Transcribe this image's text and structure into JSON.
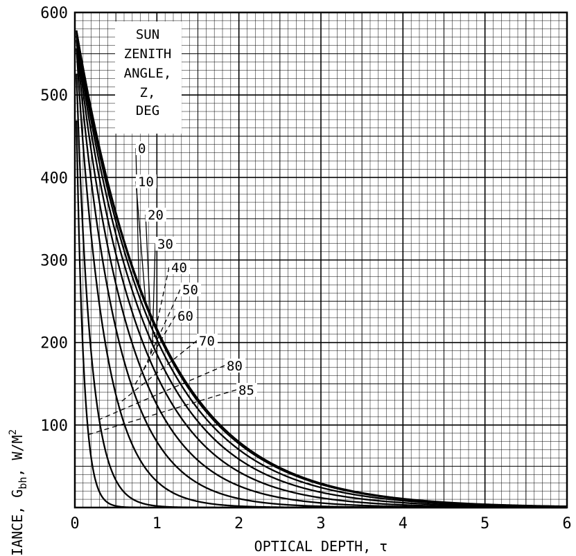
{
  "chart_data": {
    "type": "line",
    "xlabel": "OPTICAL DEPTH, τ",
    "ylabel_main": "IANCE, G",
    "ylabel_sub": "bh",
    "ylabel_units": ", W/M",
    "ylabel_sup": "2",
    "xlim": [
      0,
      6
    ],
    "ylim": [
      0,
      600
    ],
    "x_ticks": [
      0,
      1,
      2,
      3,
      4,
      5,
      6
    ],
    "y_ticks": [
      100,
      200,
      300,
      400,
      500,
      600
    ],
    "grid": true,
    "legend_title": [
      "SUN",
      "ZENITH",
      "ANGLE,",
      "Z,",
      "DEG"
    ],
    "legend_placement": "top-left",
    "series": [
      {
        "name": "0",
        "zenith_deg": 0
      },
      {
        "name": "10",
        "zenith_deg": 10
      },
      {
        "name": "20",
        "zenith_deg": 20
      },
      {
        "name": "30",
        "zenith_deg": 30
      },
      {
        "name": "40",
        "zenith_deg": 40
      },
      {
        "name": "50",
        "zenith_deg": 50
      },
      {
        "name": "60",
        "zenith_deg": 60
      },
      {
        "name": "70",
        "zenith_deg": 70
      },
      {
        "name": "80",
        "zenith_deg": 80
      },
      {
        "name": "85",
        "zenith_deg": 85
      }
    ],
    "irradiance_at_zero_depth": 590
  }
}
